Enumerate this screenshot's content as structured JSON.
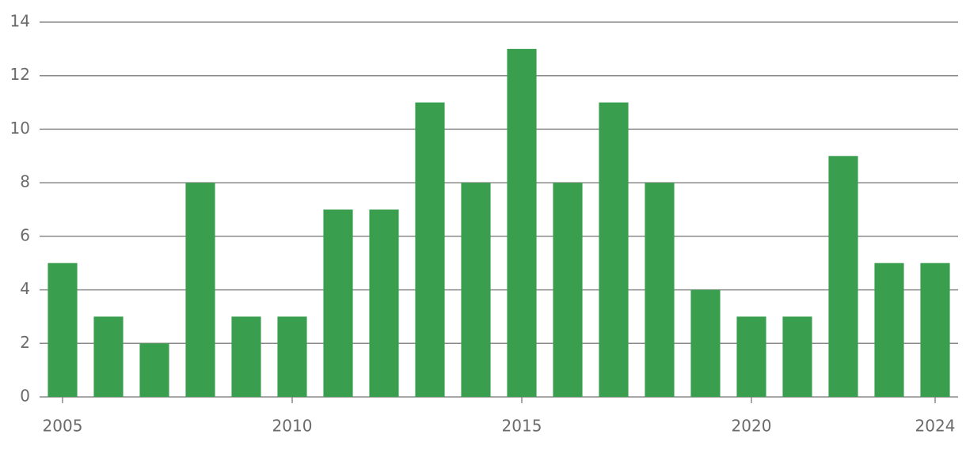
{
  "chart_data": {
    "type": "bar",
    "x": [
      2005,
      2006,
      2007,
      2008,
      2009,
      2010,
      2011,
      2012,
      2013,
      2014,
      2015,
      2016,
      2017,
      2018,
      2019,
      2020,
      2021,
      2022,
      2023,
      2024
    ],
    "values": [
      5,
      3,
      2,
      8,
      3,
      3,
      7,
      7,
      11,
      8,
      13,
      8,
      11,
      8,
      4,
      3,
      3,
      9,
      5,
      5
    ],
    "color": "#3a9e4f",
    "xlim": [
      2004.5,
      2024.5
    ],
    "xticks": [
      2005,
      2010,
      2015,
      2020,
      2024
    ],
    "ylim": [
      0,
      14
    ],
    "yticks": [
      0,
      2,
      4,
      6,
      8,
      10,
      12,
      14
    ],
    "grid": true
  }
}
